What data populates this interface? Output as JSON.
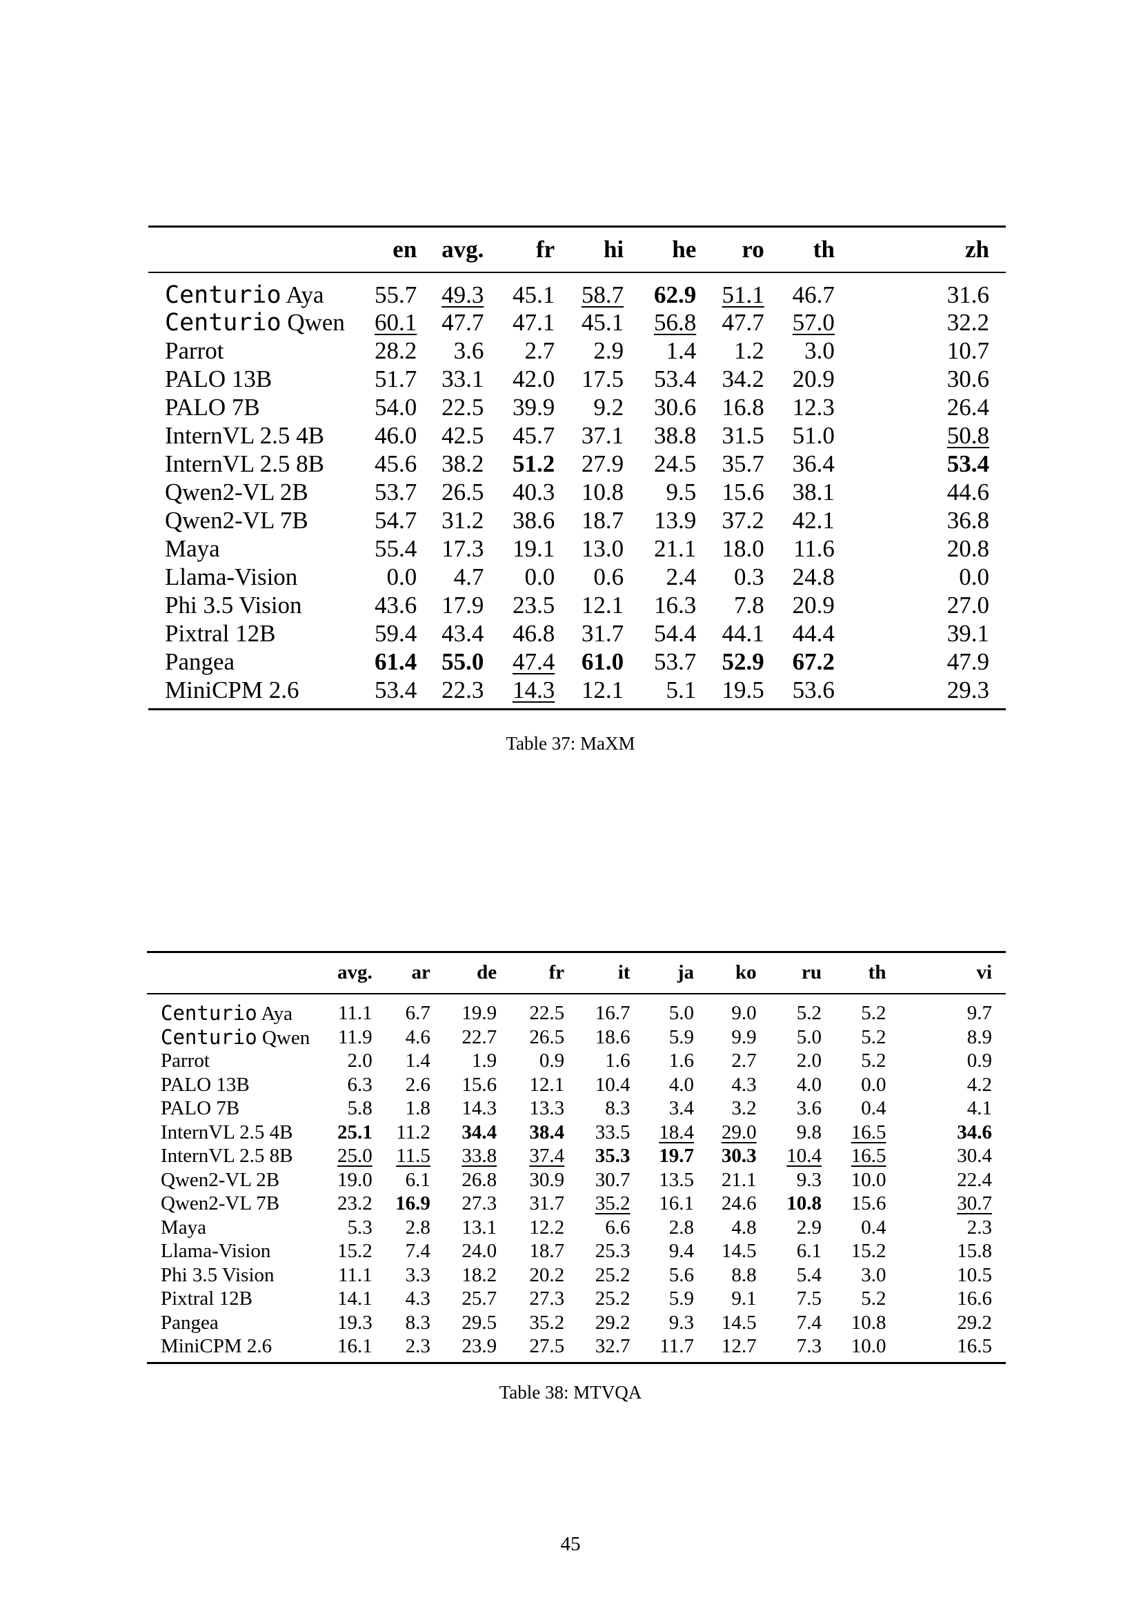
{
  "table37": {
    "caption": "Table 37: MaXM",
    "columns": [
      "en",
      "avg.",
      "fr",
      "hi",
      "he",
      "ro",
      "th",
      "zh"
    ],
    "rows": [
      {
        "model": {
          "mono": "Centurio",
          "rest": " Aya"
        },
        "cells": [
          {
            "v": "55.7"
          },
          {
            "v": "49.3",
            "s": "u"
          },
          {
            "v": "45.1"
          },
          {
            "v": "58.7",
            "s": "u"
          },
          {
            "v": "62.9",
            "s": "b"
          },
          {
            "v": "51.1",
            "s": "u"
          },
          {
            "v": "46.7"
          },
          {
            "v": "31.6"
          }
        ]
      },
      {
        "model": {
          "mono": "Centurio",
          "rest": " Qwen"
        },
        "cells": [
          {
            "v": "60.1",
            "s": "u"
          },
          {
            "v": "47.7"
          },
          {
            "v": "47.1"
          },
          {
            "v": "45.1"
          },
          {
            "v": "56.8",
            "s": "u"
          },
          {
            "v": "47.7"
          },
          {
            "v": "57.0",
            "s": "u"
          },
          {
            "v": "32.2"
          }
        ]
      },
      {
        "model": {
          "rest": "Parrot"
        },
        "cells": [
          {
            "v": "28.2"
          },
          {
            "v": "3.6"
          },
          {
            "v": "2.7"
          },
          {
            "v": "2.9"
          },
          {
            "v": "1.4"
          },
          {
            "v": "1.2"
          },
          {
            "v": "3.0"
          },
          {
            "v": "10.7"
          }
        ]
      },
      {
        "model": {
          "rest": "PALO 13B"
        },
        "cells": [
          {
            "v": "51.7"
          },
          {
            "v": "33.1"
          },
          {
            "v": "42.0"
          },
          {
            "v": "17.5"
          },
          {
            "v": "53.4"
          },
          {
            "v": "34.2"
          },
          {
            "v": "20.9"
          },
          {
            "v": "30.6"
          }
        ]
      },
      {
        "model": {
          "rest": "PALO 7B"
        },
        "cells": [
          {
            "v": "54.0"
          },
          {
            "v": "22.5"
          },
          {
            "v": "39.9"
          },
          {
            "v": "9.2"
          },
          {
            "v": "30.6"
          },
          {
            "v": "16.8"
          },
          {
            "v": "12.3"
          },
          {
            "v": "26.4"
          }
        ]
      },
      {
        "model": {
          "rest": "InternVL 2.5 4B"
        },
        "cells": [
          {
            "v": "46.0"
          },
          {
            "v": "42.5"
          },
          {
            "v": "45.7"
          },
          {
            "v": "37.1"
          },
          {
            "v": "38.8"
          },
          {
            "v": "31.5"
          },
          {
            "v": "51.0"
          },
          {
            "v": "50.8",
            "s": "u"
          }
        ]
      },
      {
        "model": {
          "rest": "InternVL 2.5 8B"
        },
        "cells": [
          {
            "v": "45.6"
          },
          {
            "v": "38.2"
          },
          {
            "v": "51.2",
            "s": "b"
          },
          {
            "v": "27.9"
          },
          {
            "v": "24.5"
          },
          {
            "v": "35.7"
          },
          {
            "v": "36.4"
          },
          {
            "v": "53.4",
            "s": "b"
          }
        ]
      },
      {
        "model": {
          "rest": "Qwen2-VL 2B"
        },
        "cells": [
          {
            "v": "53.7"
          },
          {
            "v": "26.5"
          },
          {
            "v": "40.3"
          },
          {
            "v": "10.8"
          },
          {
            "v": "9.5"
          },
          {
            "v": "15.6"
          },
          {
            "v": "38.1"
          },
          {
            "v": "44.6"
          }
        ]
      },
      {
        "model": {
          "rest": "Qwen2-VL 7B"
        },
        "cells": [
          {
            "v": "54.7"
          },
          {
            "v": "31.2"
          },
          {
            "v": "38.6"
          },
          {
            "v": "18.7"
          },
          {
            "v": "13.9"
          },
          {
            "v": "37.2"
          },
          {
            "v": "42.1"
          },
          {
            "v": "36.8"
          }
        ]
      },
      {
        "model": {
          "rest": "Maya"
        },
        "cells": [
          {
            "v": "55.4"
          },
          {
            "v": "17.3"
          },
          {
            "v": "19.1"
          },
          {
            "v": "13.0"
          },
          {
            "v": "21.1"
          },
          {
            "v": "18.0"
          },
          {
            "v": "11.6"
          },
          {
            "v": "20.8"
          }
        ]
      },
      {
        "model": {
          "rest": "Llama-Vision"
        },
        "cells": [
          {
            "v": "0.0"
          },
          {
            "v": "4.7"
          },
          {
            "v": "0.0"
          },
          {
            "v": "0.6"
          },
          {
            "v": "2.4"
          },
          {
            "v": "0.3"
          },
          {
            "v": "24.8"
          },
          {
            "v": "0.0"
          }
        ]
      },
      {
        "model": {
          "rest": "Phi 3.5 Vision"
        },
        "cells": [
          {
            "v": "43.6"
          },
          {
            "v": "17.9"
          },
          {
            "v": "23.5"
          },
          {
            "v": "12.1"
          },
          {
            "v": "16.3"
          },
          {
            "v": "7.8"
          },
          {
            "v": "20.9"
          },
          {
            "v": "27.0"
          }
        ]
      },
      {
        "model": {
          "rest": "Pixtral 12B"
        },
        "cells": [
          {
            "v": "59.4"
          },
          {
            "v": "43.4"
          },
          {
            "v": "46.8"
          },
          {
            "v": "31.7"
          },
          {
            "v": "54.4"
          },
          {
            "v": "44.1"
          },
          {
            "v": "44.4"
          },
          {
            "v": "39.1"
          }
        ]
      },
      {
        "model": {
          "rest": "Pangea"
        },
        "cells": [
          {
            "v": "61.4",
            "s": "b"
          },
          {
            "v": "55.0",
            "s": "b"
          },
          {
            "v": "47.4",
            "s": "u"
          },
          {
            "v": "61.0",
            "s": "b"
          },
          {
            "v": "53.7"
          },
          {
            "v": "52.9",
            "s": "b"
          },
          {
            "v": "67.2",
            "s": "b"
          },
          {
            "v": "47.9"
          }
        ]
      },
      {
        "model": {
          "rest": "MiniCPM 2.6"
        },
        "cells": [
          {
            "v": "53.4"
          },
          {
            "v": "22.3"
          },
          {
            "v": "14.3",
            "s": "u"
          },
          {
            "v": "12.1"
          },
          {
            "v": "5.1"
          },
          {
            "v": "19.5"
          },
          {
            "v": "53.6"
          },
          {
            "v": "29.3"
          }
        ]
      }
    ]
  },
  "table38": {
    "caption": "Table 38: MTVQA",
    "columns": [
      "avg.",
      "ar",
      "de",
      "fr",
      "it",
      "ja",
      "ko",
      "ru",
      "th",
      "vi"
    ],
    "rows": [
      {
        "model": {
          "mono": "Centurio",
          "rest": " Aya"
        },
        "cells": [
          {
            "v": "11.1"
          },
          {
            "v": "6.7"
          },
          {
            "v": "19.9"
          },
          {
            "v": "22.5"
          },
          {
            "v": "16.7"
          },
          {
            "v": "5.0"
          },
          {
            "v": "9.0"
          },
          {
            "v": "5.2"
          },
          {
            "v": "5.2"
          },
          {
            "v": "9.7"
          }
        ]
      },
      {
        "model": {
          "mono": "Centurio",
          "rest": " Qwen"
        },
        "cells": [
          {
            "v": "11.9"
          },
          {
            "v": "4.6"
          },
          {
            "v": "22.7"
          },
          {
            "v": "26.5"
          },
          {
            "v": "18.6"
          },
          {
            "v": "5.9"
          },
          {
            "v": "9.9"
          },
          {
            "v": "5.0"
          },
          {
            "v": "5.2"
          },
          {
            "v": "8.9"
          }
        ]
      },
      {
        "model": {
          "rest": "Parrot"
        },
        "cells": [
          {
            "v": "2.0"
          },
          {
            "v": "1.4"
          },
          {
            "v": "1.9"
          },
          {
            "v": "0.9"
          },
          {
            "v": "1.6"
          },
          {
            "v": "1.6"
          },
          {
            "v": "2.7"
          },
          {
            "v": "2.0"
          },
          {
            "v": "5.2"
          },
          {
            "v": "0.9"
          }
        ]
      },
      {
        "model": {
          "rest": "PALO 13B"
        },
        "cells": [
          {
            "v": "6.3"
          },
          {
            "v": "2.6"
          },
          {
            "v": "15.6"
          },
          {
            "v": "12.1"
          },
          {
            "v": "10.4"
          },
          {
            "v": "4.0"
          },
          {
            "v": "4.3"
          },
          {
            "v": "4.0"
          },
          {
            "v": "0.0"
          },
          {
            "v": "4.2"
          }
        ]
      },
      {
        "model": {
          "rest": "PALO 7B"
        },
        "cells": [
          {
            "v": "5.8"
          },
          {
            "v": "1.8"
          },
          {
            "v": "14.3"
          },
          {
            "v": "13.3"
          },
          {
            "v": "8.3"
          },
          {
            "v": "3.4"
          },
          {
            "v": "3.2"
          },
          {
            "v": "3.6"
          },
          {
            "v": "0.4"
          },
          {
            "v": "4.1"
          }
        ]
      },
      {
        "model": {
          "rest": "InternVL 2.5 4B"
        },
        "cells": [
          {
            "v": "25.1",
            "s": "b"
          },
          {
            "v": "11.2"
          },
          {
            "v": "34.4",
            "s": "b"
          },
          {
            "v": "38.4",
            "s": "b"
          },
          {
            "v": "33.5"
          },
          {
            "v": "18.4",
            "s": "u"
          },
          {
            "v": "29.0",
            "s": "u"
          },
          {
            "v": "9.8"
          },
          {
            "v": "16.5",
            "s": "u"
          },
          {
            "v": "34.6",
            "s": "b"
          }
        ]
      },
      {
        "model": {
          "rest": "InternVL 2.5 8B"
        },
        "cells": [
          {
            "v": "25.0",
            "s": "u"
          },
          {
            "v": "11.5",
            "s": "u"
          },
          {
            "v": "33.8",
            "s": "u"
          },
          {
            "v": "37.4",
            "s": "u"
          },
          {
            "v": "35.3",
            "s": "b"
          },
          {
            "v": "19.7",
            "s": "b"
          },
          {
            "v": "30.3",
            "s": "b"
          },
          {
            "v": "10.4",
            "s": "u"
          },
          {
            "v": "16.5",
            "s": "u"
          },
          {
            "v": "30.4"
          }
        ]
      },
      {
        "model": {
          "rest": "Qwen2-VL 2B"
        },
        "cells": [
          {
            "v": "19.0"
          },
          {
            "v": "6.1"
          },
          {
            "v": "26.8"
          },
          {
            "v": "30.9"
          },
          {
            "v": "30.7"
          },
          {
            "v": "13.5"
          },
          {
            "v": "21.1"
          },
          {
            "v": "9.3"
          },
          {
            "v": "10.0"
          },
          {
            "v": "22.4"
          }
        ]
      },
      {
        "model": {
          "rest": "Qwen2-VL 7B"
        },
        "cells": [
          {
            "v": "23.2"
          },
          {
            "v": "16.9",
            "s": "b"
          },
          {
            "v": "27.3"
          },
          {
            "v": "31.7"
          },
          {
            "v": "35.2",
            "s": "u"
          },
          {
            "v": "16.1"
          },
          {
            "v": "24.6"
          },
          {
            "v": "10.8",
            "s": "b"
          },
          {
            "v": "15.6"
          },
          {
            "v": "30.7",
            "s": "u"
          }
        ]
      },
      {
        "model": {
          "rest": "Maya"
        },
        "cells": [
          {
            "v": "5.3"
          },
          {
            "v": "2.8"
          },
          {
            "v": "13.1"
          },
          {
            "v": "12.2"
          },
          {
            "v": "6.6"
          },
          {
            "v": "2.8"
          },
          {
            "v": "4.8"
          },
          {
            "v": "2.9"
          },
          {
            "v": "0.4"
          },
          {
            "v": "2.3"
          }
        ]
      },
      {
        "model": {
          "rest": "Llama-Vision"
        },
        "cells": [
          {
            "v": "15.2"
          },
          {
            "v": "7.4"
          },
          {
            "v": "24.0"
          },
          {
            "v": "18.7"
          },
          {
            "v": "25.3"
          },
          {
            "v": "9.4"
          },
          {
            "v": "14.5"
          },
          {
            "v": "6.1"
          },
          {
            "v": "15.2"
          },
          {
            "v": "15.8"
          }
        ]
      },
      {
        "model": {
          "rest": "Phi 3.5 Vision"
        },
        "cells": [
          {
            "v": "11.1"
          },
          {
            "v": "3.3"
          },
          {
            "v": "18.2"
          },
          {
            "v": "20.2"
          },
          {
            "v": "25.2"
          },
          {
            "v": "5.6"
          },
          {
            "v": "8.8"
          },
          {
            "v": "5.4"
          },
          {
            "v": "3.0"
          },
          {
            "v": "10.5"
          }
        ]
      },
      {
        "model": {
          "rest": "Pixtral 12B"
        },
        "cells": [
          {
            "v": "14.1"
          },
          {
            "v": "4.3"
          },
          {
            "v": "25.7"
          },
          {
            "v": "27.3"
          },
          {
            "v": "25.2"
          },
          {
            "v": "5.9"
          },
          {
            "v": "9.1"
          },
          {
            "v": "7.5"
          },
          {
            "v": "5.2"
          },
          {
            "v": "16.6"
          }
        ]
      },
      {
        "model": {
          "rest": "Pangea"
        },
        "cells": [
          {
            "v": "19.3"
          },
          {
            "v": "8.3"
          },
          {
            "v": "29.5"
          },
          {
            "v": "35.2"
          },
          {
            "v": "29.2"
          },
          {
            "v": "9.3"
          },
          {
            "v": "14.5"
          },
          {
            "v": "7.4"
          },
          {
            "v": "10.8"
          },
          {
            "v": "29.2"
          }
        ]
      },
      {
        "model": {
          "rest": "MiniCPM 2.6"
        },
        "cells": [
          {
            "v": "16.1"
          },
          {
            "v": "2.3"
          },
          {
            "v": "23.9"
          },
          {
            "v": "27.5"
          },
          {
            "v": "32.7"
          },
          {
            "v": "11.7"
          },
          {
            "v": "12.7"
          },
          {
            "v": "7.3"
          },
          {
            "v": "10.0"
          },
          {
            "v": "16.5"
          }
        ]
      }
    ]
  },
  "page_number": "45"
}
